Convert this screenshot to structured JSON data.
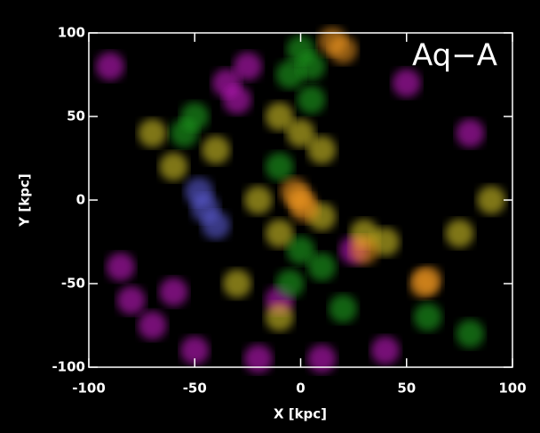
{
  "chart_data": {
    "type": "scatter",
    "annotation": "Aq−A",
    "x_label": "X [kpc]",
    "y_label": "Y [kpc]",
    "xlim": [
      -100,
      100
    ],
    "ylim": [
      -100,
      100
    ],
    "xticks": [
      -100,
      -50,
      0,
      50,
      100
    ],
    "yticks": [
      -100,
      -50,
      0,
      50,
      100
    ],
    "series": [
      {
        "name": "magenta",
        "color": "#d81ed8",
        "x": [
          -35,
          -25,
          -30,
          -80,
          -70,
          -50,
          -20,
          10,
          40,
          -85,
          -60,
          50,
          80,
          -90,
          25,
          -10
        ],
        "y": [
          70,
          80,
          60,
          -60,
          -75,
          -90,
          -95,
          -95,
          -90,
          -40,
          -55,
          70,
          40,
          80,
          -30,
          -60
        ]
      },
      {
        "name": "green",
        "color": "#22b422",
        "x": [
          0,
          -5,
          5,
          -55,
          -50,
          0,
          -5,
          10,
          60,
          80,
          20,
          -10,
          5
        ],
        "y": [
          90,
          75,
          80,
          40,
          50,
          -30,
          -50,
          -40,
          -70,
          -80,
          -65,
          20,
          60
        ]
      },
      {
        "name": "yellow",
        "color": "#e8d82a",
        "x": [
          -10,
          0,
          10,
          -60,
          -40,
          -20,
          -10,
          30,
          40,
          75,
          90,
          -30,
          10,
          -70,
          -10
        ],
        "y": [
          50,
          40,
          30,
          20,
          30,
          0,
          -20,
          -20,
          -25,
          -20,
          0,
          -50,
          -10,
          40,
          -70
        ]
      },
      {
        "name": "orange",
        "color": "#ffa020",
        "x": [
          0,
          2,
          -3,
          20,
          15,
          58,
          60,
          30
        ],
        "y": [
          0,
          -5,
          5,
          90,
          95,
          -50,
          -48,
          -30
        ]
      },
      {
        "name": "blue",
        "color": "#6868f0",
        "x": [
          -45,
          -48,
          -40
        ],
        "y": [
          -5,
          5,
          -15
        ]
      }
    ]
  }
}
